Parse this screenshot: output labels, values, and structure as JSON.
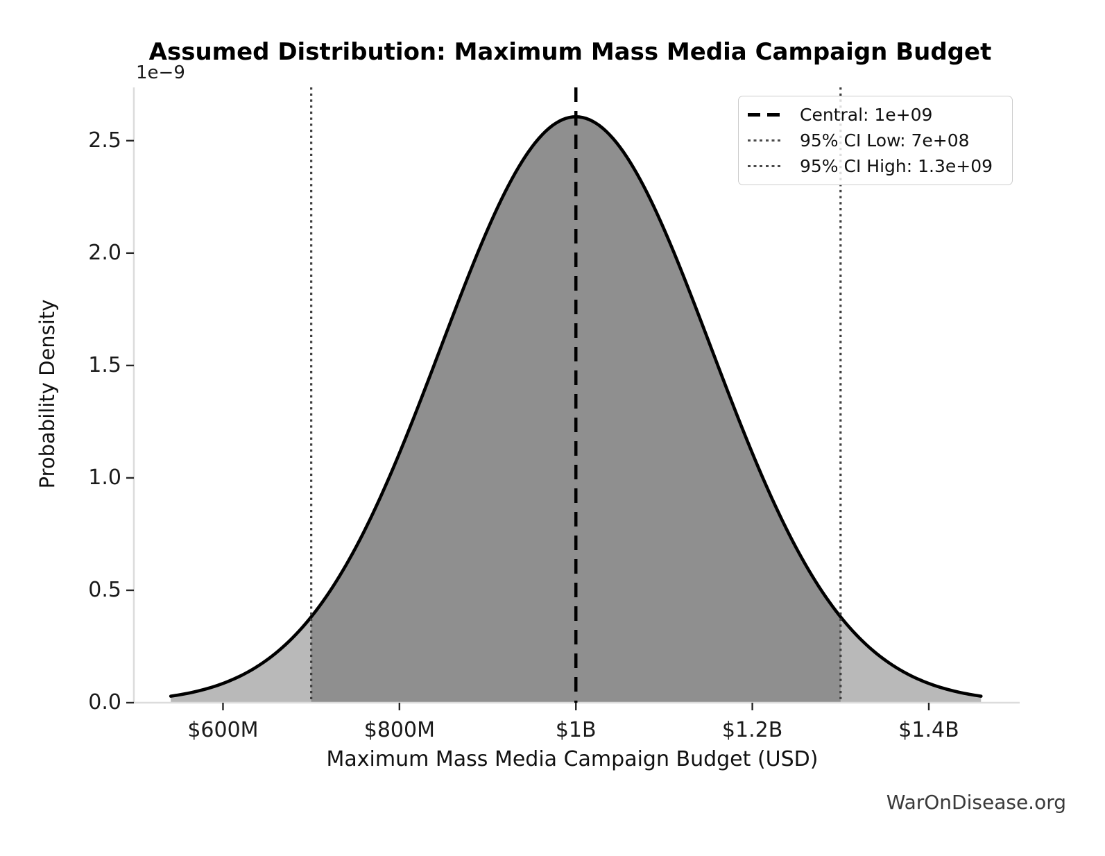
{
  "watermark": "WarOnDisease.org",
  "chart_data": {
    "type": "area",
    "subtype": "normal-distribution-pdf",
    "title": "Assumed Distribution: Maximum Mass Media Campaign Budget",
    "xlabel": "Maximum Mass Media Campaign Budget (USD)",
    "ylabel": "Probability Density",
    "y_offset_label": "1e−9",
    "central": 1000000000,
    "ci_low": 700000000,
    "ci_high": 1300000000,
    "sigma": 153061224,
    "peak_density": 2.606e-09,
    "curve_domain": [
      540816327,
      1459183673
    ],
    "xlim": [
      499000000,
      1503000000
    ],
    "ylim": [
      0,
      2.737e-09
    ],
    "grid": false,
    "x_ticks": [
      {
        "value": 600000000,
        "label": "$600M"
      },
      {
        "value": 800000000,
        "label": "$800M"
      },
      {
        "value": 1000000000,
        "label": "$1B"
      },
      {
        "value": 1200000000,
        "label": "$1.2B"
      },
      {
        "value": 1400000000,
        "label": "$1.4B"
      }
    ],
    "y_ticks": [
      {
        "value": 0.0,
        "label": "0.0"
      },
      {
        "value": 0.5,
        "label": "0.5"
      },
      {
        "value": 1.0,
        "label": "1.0"
      },
      {
        "value": 1.5,
        "label": "1.5"
      },
      {
        "value": 2.0,
        "label": "2.0"
      },
      {
        "value": 2.5,
        "label": "2.5"
      }
    ],
    "legend": {
      "position": "upper right",
      "entries": [
        {
          "label": "Central: 1e+09",
          "style": "dashed",
          "color": "#000000"
        },
        {
          "label": "95% CI Low: 7e+08",
          "style": "dotted",
          "color": "#4a4a4a"
        },
        {
          "label": "95% CI High: 1.3e+09",
          "style": "dotted",
          "color": "#4a4a4a"
        }
      ]
    },
    "colors": {
      "curve": "#000000",
      "fill_tail": "#b9b9b9",
      "fill_ci": "#8f8f8f",
      "central_line": "#000000",
      "ci_line": "#3d3d3d",
      "spine": "#dcdcdc",
      "tick": "#262626",
      "watermark": "#3a3a3a"
    }
  }
}
